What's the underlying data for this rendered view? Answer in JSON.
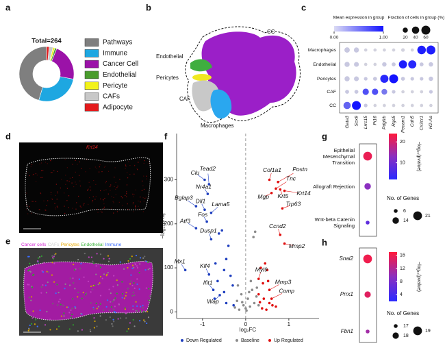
{
  "panel_labels": [
    "a",
    "b",
    "c",
    "d",
    "e",
    "f",
    "g",
    "h"
  ],
  "umap": {
    "labels": [
      "CC",
      "Endothelial",
      "Pericytes",
      "CAF",
      "Macrophages"
    ]
  },
  "image_d": {
    "marker": "Krt14"
  },
  "image_e": {
    "markers": [
      {
        "text": "Cancer cells",
        "color": "#d42ad4"
      },
      {
        "text": "CAFs",
        "color": "#cfcfcf"
      },
      {
        "text": "Pericytes",
        "color": "#e8a800"
      },
      {
        "text": "Endothelial",
        "color": "#3cb33c"
      },
      {
        "text": "Immune",
        "color": "#3a6cff"
      }
    ]
  },
  "chart_data": [
    {
      "type": "pie",
      "donut": true,
      "title": "Total=264",
      "categories": [
        "Pathways",
        "Immune",
        "Cancer Cell",
        "Endothelial",
        "Pericyte",
        "CAFs",
        "Adipocyte"
      ],
      "values": [
        120,
        70,
        58,
        3,
        3,
        6,
        4
      ],
      "colors": [
        "#7f7f7f",
        "#1ea7e1",
        "#9b12a8",
        "#4a9c2d",
        "#f2f21a",
        "#c8c8c8",
        "#e41a1c"
      ]
    },
    {
      "type": "dotplot",
      "x_categories": [
        "Gata3",
        "Sox9",
        "Lrrc15",
        "Pi16",
        "Pdgfrb",
        "Rgs5",
        "Pecam1",
        "Cdh5",
        "Cx3cr1",
        "H2-Aa"
      ],
      "y_categories": [
        "Macrophages",
        "Endothelial",
        "Pericytes",
        "CAF",
        "CC"
      ],
      "values": [
        [
          0.1,
          0.1,
          0.05,
          0.05,
          0.05,
          0.05,
          0.05,
          0.05,
          0.95,
          0.95
        ],
        [
          0.1,
          0.1,
          0.05,
          0.05,
          0.1,
          0.1,
          0.95,
          0.9,
          0.1,
          0.1
        ],
        [
          0.1,
          0.1,
          0.1,
          0.1,
          0.9,
          1,
          0.1,
          0.1,
          0.1,
          0.1
        ],
        [
          0.1,
          0.1,
          0.7,
          0.7,
          0.5,
          0.1,
          0.05,
          0.05,
          0.05,
          0.1
        ],
        [
          0.6,
          1,
          0.1,
          0.05,
          0.05,
          0.05,
          0.05,
          0.05,
          0.05,
          0.05
        ]
      ],
      "sizes": [
        [
          22,
          20,
          8,
          8,
          8,
          8,
          10,
          8,
          55,
          60
        ],
        [
          20,
          18,
          8,
          8,
          15,
          12,
          50,
          50,
          12,
          15
        ],
        [
          20,
          18,
          10,
          12,
          50,
          60,
          12,
          10,
          10,
          15
        ],
        [
          12,
          12,
          30,
          30,
          25,
          10,
          8,
          8,
          8,
          10
        ],
        [
          40,
          60,
          10,
          8,
          8,
          8,
          8,
          8,
          8,
          8
        ]
      ],
      "color_title": "Mean expression in group",
      "colors": [
        "#dcdcdc",
        "#1414ff"
      ],
      "clim": [
        0,
        1
      ],
      "cticks": [
        {
          "value": 0,
          "label": "0.00"
        },
        {
          "value": 1,
          "label": "1.00"
        }
      ],
      "size_title": "Fraction of cells in group (%)",
      "size_ticks": [
        20,
        40,
        60
      ]
    },
    {
      "type": "scatter",
      "xlabel": "log₂FC",
      "ylabel": "−log₁₀pAdj",
      "xlim": [
        -1.6,
        1.7
      ],
      "ylim": [
        -15,
        405
      ],
      "xticks": [
        -1,
        0,
        1
      ],
      "yticks": [
        0,
        100,
        200,
        300
      ],
      "reference_line": 0,
      "legend": "bottom",
      "series": [
        {
          "name": "Down Regulated",
          "color": "#1f3fbf",
          "x": [
            -0.95,
            -0.85,
            -0.88,
            -1.15,
            -0.95,
            -0.8,
            -0.9,
            -1.15,
            -0.8,
            -1.4,
            -0.85,
            -0.75,
            -0.6,
            -0.55,
            -0.62,
            -0.4,
            -0.45,
            -0.7,
            -0.5,
            -0.35,
            -0.65,
            -0.3,
            -0.5,
            -0.72,
            -0.45,
            -0.28
          ],
          "values": [
            300,
            290,
            268,
            240,
            232,
            225,
            205,
            190,
            165,
            95,
            85,
            50,
            38,
            185,
            178,
            150,
            120,
            110,
            95,
            82,
            70,
            60,
            45,
            30,
            20,
            15
          ],
          "labels": [
            "Clu",
            "Tead2",
            "Nr4a1",
            "Bglap3",
            "Dll1",
            "Lama5",
            "Fos",
            "Atf3",
            "Dusp1",
            "Mx1",
            "Klf4",
            "Ifit1",
            "Wap",
            null,
            null,
            null,
            null,
            null,
            null,
            null,
            null,
            null,
            null,
            null,
            null,
            null
          ]
        },
        {
          "name": "Baseline",
          "color": "#8c8c8c",
          "x": [
            -0.25,
            -0.2,
            -0.15,
            -0.1,
            -0.05,
            0,
            0.05,
            0.1,
            0.15,
            0.2,
            0.25,
            -0.18,
            0.12,
            0.3,
            0.18,
            0.22,
            0.08,
            -0.08,
            0.26,
            0.02
          ],
          "values": [
            10,
            25,
            5,
            40,
            15,
            8,
            30,
            12,
            50,
            20,
            35,
            60,
            70,
            15,
            170,
            182,
            45,
            22,
            55,
            3
          ]
        },
        {
          "name": "Up Regulated",
          "color": "#e01010",
          "x": [
            0.55,
            0.75,
            0.7,
            0.6,
            0.8,
            0.9,
            0.85,
            0.8,
            0.9,
            0.3,
            0.55,
            0.6,
            0.35,
            0.45,
            0.5,
            0.4,
            0.3,
            0.42,
            0.55,
            0.62,
            0.7,
            0.38,
            0.48,
            0.33,
            0.52
          ],
          "values": [
            300,
            295,
            280,
            270,
            278,
            275,
            235,
            175,
            155,
            75,
            50,
            30,
            100,
            110,
            95,
            65,
            40,
            30,
            20,
            15,
            12,
            8,
            5,
            22,
            70
          ],
          "labels": [
            "Col1a1",
            "Postn",
            "Tnc",
            "Mgp",
            "Krt5",
            "Krt14",
            "Trp63",
            "Ccnd2",
            "Mmp2",
            "Myl9",
            "Mmp3",
            "Comp",
            null,
            null,
            null,
            null,
            null,
            null,
            null,
            null,
            null,
            null,
            null,
            null,
            null
          ]
        }
      ]
    },
    {
      "type": "dotplot",
      "categories": [
        "Epithelial Mesenchymal Transition",
        "Allograft Rejection",
        "Wnt-beta Catenin Signaling"
      ],
      "values": [
        22,
        13,
        8
      ],
      "sizes": [
        21,
        14,
        6
      ],
      "color_title": "−log₁₀(pvalue)",
      "colors": [
        "#2b2bff",
        "#8b30c0",
        "#ff1a3c"
      ],
      "clim": [
        2,
        24
      ],
      "cticks": [
        10,
        20
      ],
      "size_title": "No. of Genes",
      "size_ticks": [
        6,
        14,
        21
      ]
    },
    {
      "type": "dotplot",
      "italic": true,
      "categories": [
        "Snai2",
        "Prrx1",
        "Fbn1"
      ],
      "values": [
        16,
        15,
        11
      ],
      "sizes": [
        19,
        18,
        17
      ],
      "color_title": "−log₁₀(pvalue)",
      "colors": [
        "#2b2bff",
        "#8b30c0",
        "#ff1a3c"
      ],
      "clim": [
        2,
        17
      ],
      "cticks": [
        4,
        8,
        12,
        16
      ],
      "size_title": "No. of Genes",
      "size_ticks": [
        17,
        18,
        19
      ]
    }
  ]
}
